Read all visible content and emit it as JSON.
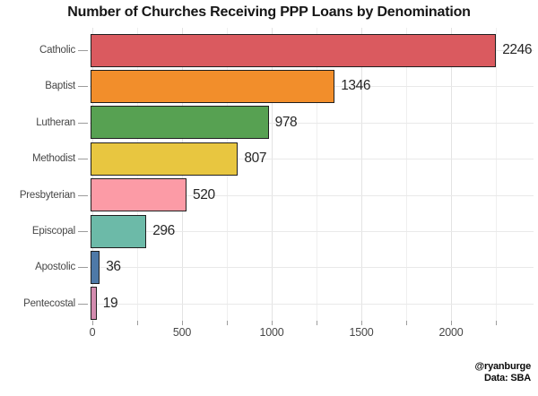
{
  "chart_data": {
    "type": "bar",
    "orientation": "horizontal",
    "title": "Number of Churches Receiving PPP Loans by Denomination",
    "categories": [
      "Catholic",
      "Baptist",
      "Lutheran",
      "Methodist",
      "Presbyterian",
      "Episcopal",
      "Apostolic",
      "Pentecostal"
    ],
    "values": [
      2246,
      1346,
      978,
      807,
      520,
      296,
      36,
      19
    ],
    "value_labels": [
      "2246",
      "1346",
      "978",
      "807",
      "520",
      "296",
      "36",
      "19"
    ],
    "bar_colors": [
      "#DA5A5F",
      "#F28E2B",
      "#57A152",
      "#E8C640",
      "#FC9BA6",
      "#6CBAA8",
      "#4E79A7",
      "#D48CAF"
    ],
    "bar_border_color": "#1f1f1f",
    "xlabel": "",
    "ylabel": "",
    "x_ticks_major": [
      0,
      500,
      1000,
      1500,
      2000
    ],
    "x_tick_labels": [
      "0",
      "500",
      "1000",
      "1500",
      "2000"
    ],
    "x_ticks_minor_interval": 250,
    "xlim": [
      0,
      2460
    ],
    "grid": "light gray major and minor gridlines on white panel",
    "legend": "none"
  },
  "attribution": {
    "line1": "@ryanburge",
    "line2": "Data: SBA"
  },
  "colors": {
    "background": "#ffffff",
    "grid_major": "#e3e3e3",
    "grid_minor": "#efefef",
    "axis_tick": "#9c9c9c",
    "text_primary": "#161616",
    "text_axis": "#474747"
  }
}
